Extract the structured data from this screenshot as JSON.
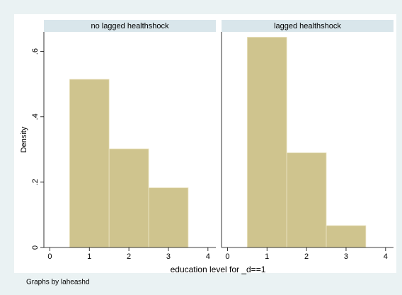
{
  "y_label": "Density",
  "x_label": "education level for _d==1",
  "note": "Graphs by laheashd",
  "chart_data": [
    {
      "type": "histogram",
      "title": "no lagged healthshock",
      "bins": [
        0.5,
        1.5,
        2.5,
        3.5
      ],
      "values": [
        0.515,
        0.302,
        0.183
      ],
      "color": "#cfc48e",
      "xlim": [
        -0.15,
        4.2
      ],
      "xticks": [
        0,
        1,
        2,
        3,
        4
      ],
      "ylim": [
        0,
        0.66
      ],
      "yticks": [
        0,
        {
          "value": 0.2,
          "label": ".2"
        },
        {
          "value": 0.4,
          "label": ".4"
        },
        {
          "value": 0.6,
          "label": ".6"
        }
      ]
    },
    {
      "type": "histogram",
      "title": "lagged healthshock",
      "bins": [
        0.5,
        1.5,
        2.5,
        3.5
      ],
      "values": [
        0.644,
        0.29,
        0.067
      ],
      "color": "#cfc48e",
      "xlim": [
        -0.15,
        4.2
      ],
      "xticks": [
        0,
        1,
        2,
        3,
        4
      ],
      "ylim": [
        0,
        0.66
      ]
    }
  ]
}
